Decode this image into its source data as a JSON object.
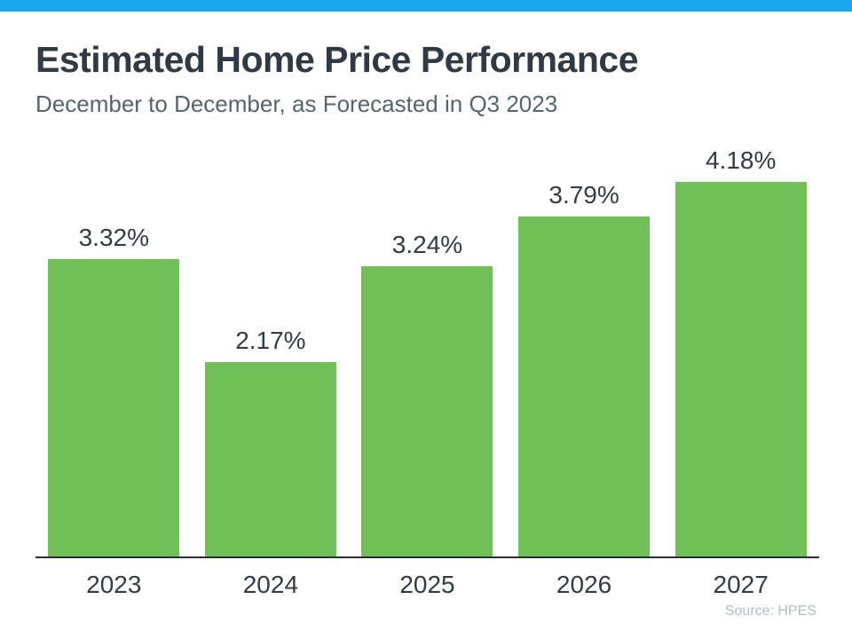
{
  "colors": {
    "accent_bar": "#18a7ec",
    "bar_fill": "#6fc157",
    "title_text": "#2f3a44",
    "subtitle_text": "#55656d",
    "label_text": "#333b44",
    "axis_line": "#2b2f33",
    "source_text": "#b2bcc2"
  },
  "header": {
    "title": "Estimated Home Price Performance",
    "subtitle": "December to December, as Forecasted in Q3 2023"
  },
  "footer": {
    "source": "Source: HPES"
  },
  "chart_data": {
    "type": "bar",
    "title": "Estimated Home Price Performance",
    "subtitle": "December to December, as Forecasted in Q3 2023",
    "categories": [
      "2023",
      "2024",
      "2025",
      "2026",
      "2027"
    ],
    "values": [
      3.32,
      2.17,
      3.24,
      3.79,
      4.18
    ],
    "value_labels": [
      "3.32%",
      "2.17%",
      "3.24%",
      "3.79%",
      "4.18%"
    ],
    "xlabel": "",
    "ylabel": "",
    "ylim": [
      0,
      4.6
    ],
    "grid": false,
    "legend": false,
    "bar_color": "#6fc157",
    "source": "Source: HPES"
  }
}
